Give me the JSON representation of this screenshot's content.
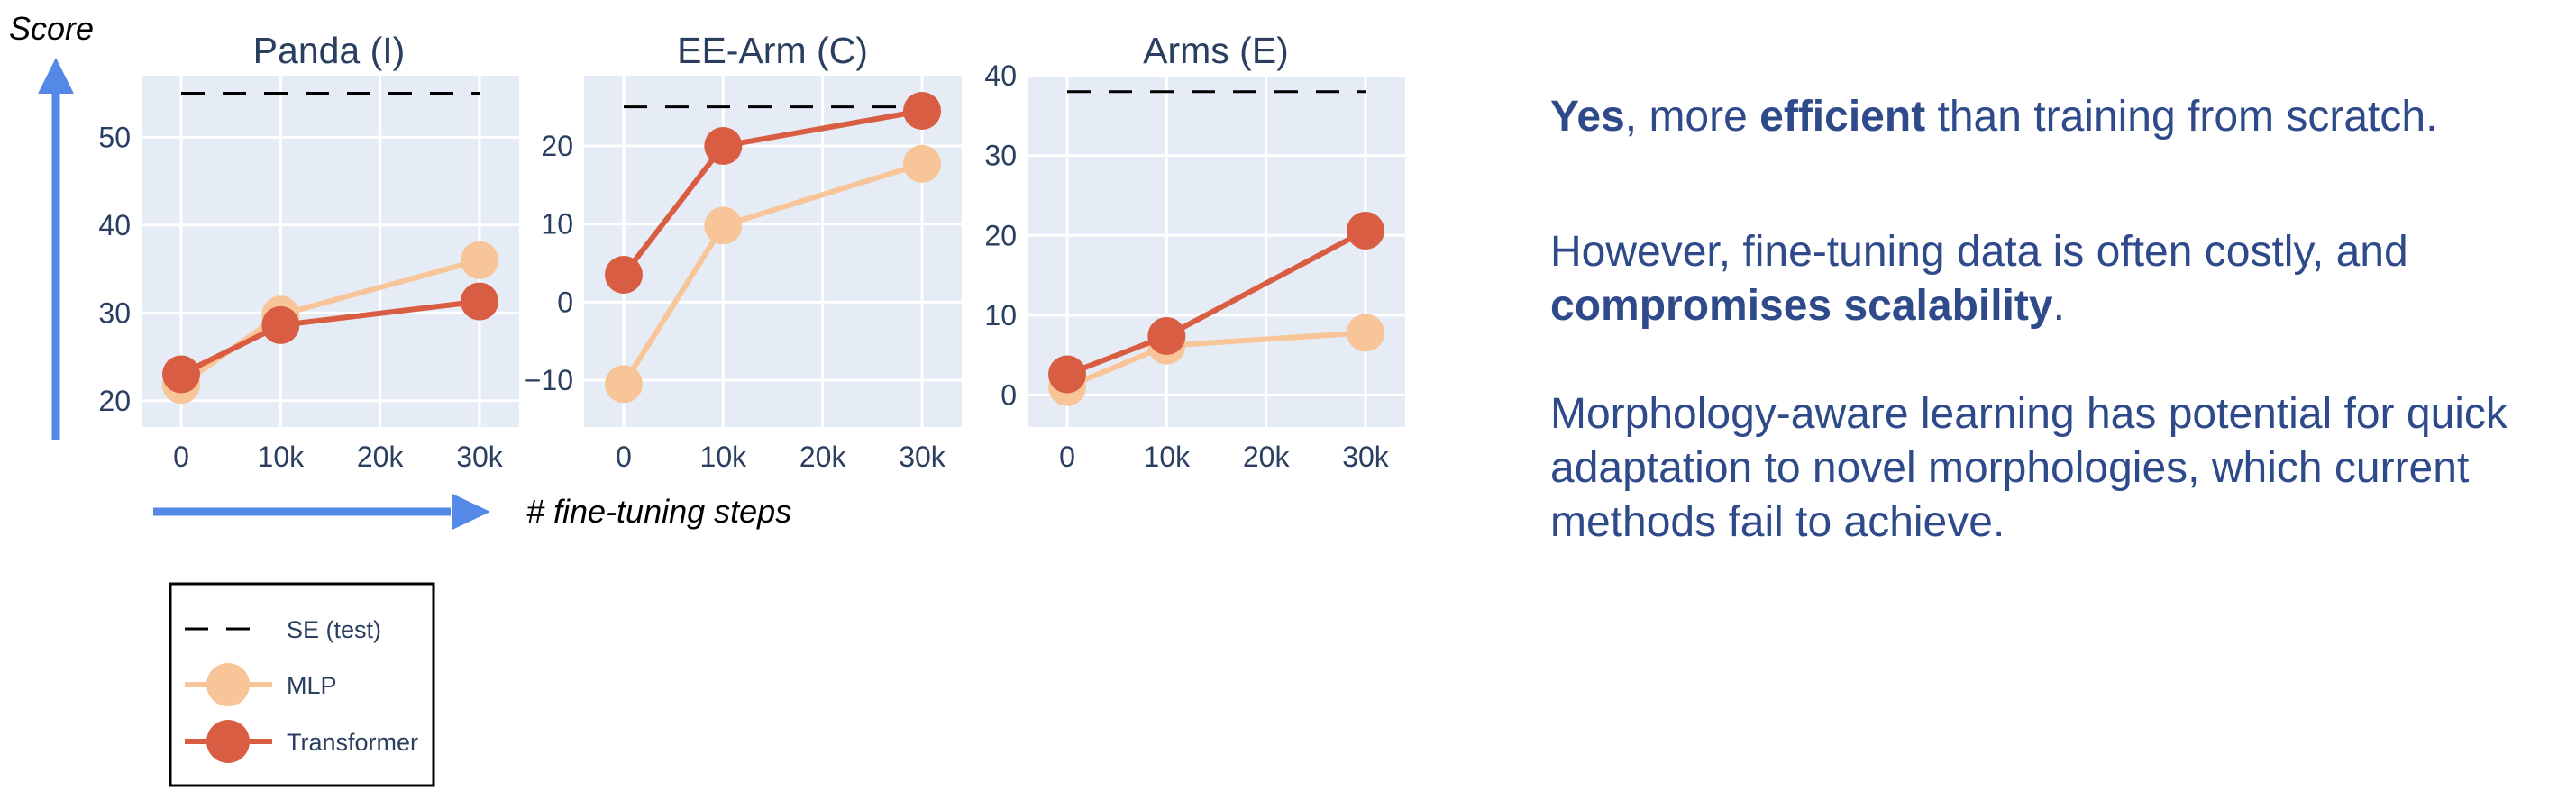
{
  "chart_data": [
    {
      "type": "line",
      "title": "Panda (I)",
      "categories": [
        "0",
        "10k",
        "20k",
        "30k"
      ],
      "x": [
        0,
        10000,
        20000,
        30000
      ],
      "ylim": [
        17,
        57
      ],
      "yticks": [
        20,
        30,
        40,
        50
      ],
      "grid": true,
      "reference_line": {
        "name": "SE (test)",
        "value": 55
      },
      "series": [
        {
          "name": "MLP",
          "x": [
            0,
            10000,
            30000
          ],
          "values": [
            21.8,
            29.8,
            36.0
          ]
        },
        {
          "name": "Transformer",
          "x": [
            0,
            10000,
            30000
          ],
          "values": [
            23.0,
            28.6,
            31.3
          ]
        }
      ]
    },
    {
      "type": "line",
      "title": "EE-Arm (C)",
      "categories": [
        "0",
        "10k",
        "20k",
        "30k"
      ],
      "x": [
        0,
        10000,
        20000,
        30000
      ],
      "ylim": [
        -16,
        29
      ],
      "yticks": [
        -10,
        0,
        10,
        20
      ],
      "grid": true,
      "reference_line": {
        "name": "SE (test)",
        "value": 25
      },
      "series": [
        {
          "name": "MLP",
          "x": [
            0,
            10000,
            30000
          ],
          "values": [
            -10.5,
            9.8,
            17.7
          ]
        },
        {
          "name": "Transformer",
          "x": [
            0,
            10000,
            30000
          ],
          "values": [
            3.5,
            20.0,
            24.5
          ]
        }
      ]
    },
    {
      "type": "line",
      "title": "Arms (E)",
      "categories": [
        "0",
        "10k",
        "20k",
        "30k"
      ],
      "x": [
        0,
        10000,
        20000,
        30000
      ],
      "ylim": [
        -4,
        40
      ],
      "yticks": [
        0,
        10,
        20,
        30,
        40
      ],
      "grid": true,
      "reference_line": {
        "name": "SE (test)",
        "value": 38
      },
      "series": [
        {
          "name": "MLP",
          "x": [
            0,
            10000,
            30000
          ],
          "values": [
            1.0,
            6.2,
            7.8
          ]
        },
        {
          "name": "Transformer",
          "x": [
            0,
            10000,
            30000
          ],
          "values": [
            2.6,
            7.4,
            20.6
          ]
        }
      ]
    }
  ],
  "ylabel": "Score",
  "xlabel": "# fine-tuning steps",
  "legend": {
    "placement": "bottom-left",
    "entries": [
      "SE (test)",
      "MLP",
      "Transformer"
    ]
  },
  "colors": {
    "plot_bg": "#e5ecf6",
    "grid": "#ffffff",
    "mlp": "#f7c597",
    "transformer": "#d95d42",
    "reference": "#000000",
    "arrow": "#5589e8",
    "text": "#2e4a8a"
  },
  "text_panel": {
    "p1": {
      "bold1": "Yes",
      "mid": ", more ",
      "bold2": "efficient",
      "end": " than training from scratch."
    },
    "p2": {
      "text": "However, fine-tuning data is often costly, and",
      "bold": "compromises scalability",
      "end": "."
    },
    "p3": {
      "text": "Morphology-aware learning has potential for quick adaptation to novel morphologies, which current methods fail to achieve."
    }
  }
}
